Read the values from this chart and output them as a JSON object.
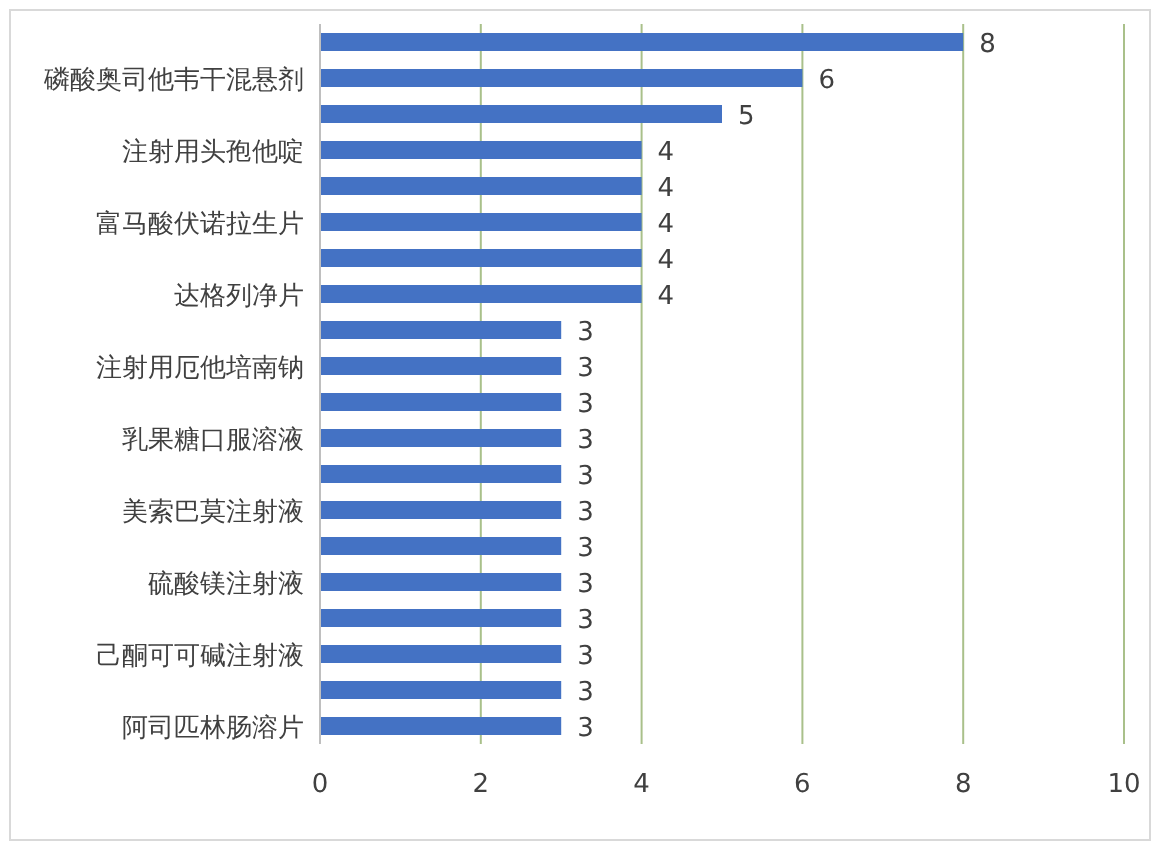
{
  "chart_data": {
    "type": "bar",
    "orientation": "horizontal",
    "categories": [
      null,
      "磷酸奥司他韦干混悬剂",
      null,
      "注射用头孢他啶",
      null,
      "富马酸伏诺拉生片",
      null,
      "达格列净片",
      null,
      "注射用厄他培南钠",
      null,
      "乳果糖口服溶液",
      null,
      "美索巴莫注射液",
      null,
      "硫酸镁注射液",
      null,
      "己酮可可碱注射液",
      null,
      "阿司匹林肠溶片"
    ],
    "values": [
      8,
      6,
      5,
      4,
      4,
      4,
      4,
      4,
      3,
      3,
      3,
      3,
      3,
      3,
      3,
      3,
      3,
      3,
      3,
      3
    ],
    "color": "#4472c4",
    "data_labels": true,
    "xlim": [
      0,
      10
    ],
    "xticks": [
      0,
      2,
      4,
      6,
      8,
      10
    ],
    "grid": "x"
  }
}
